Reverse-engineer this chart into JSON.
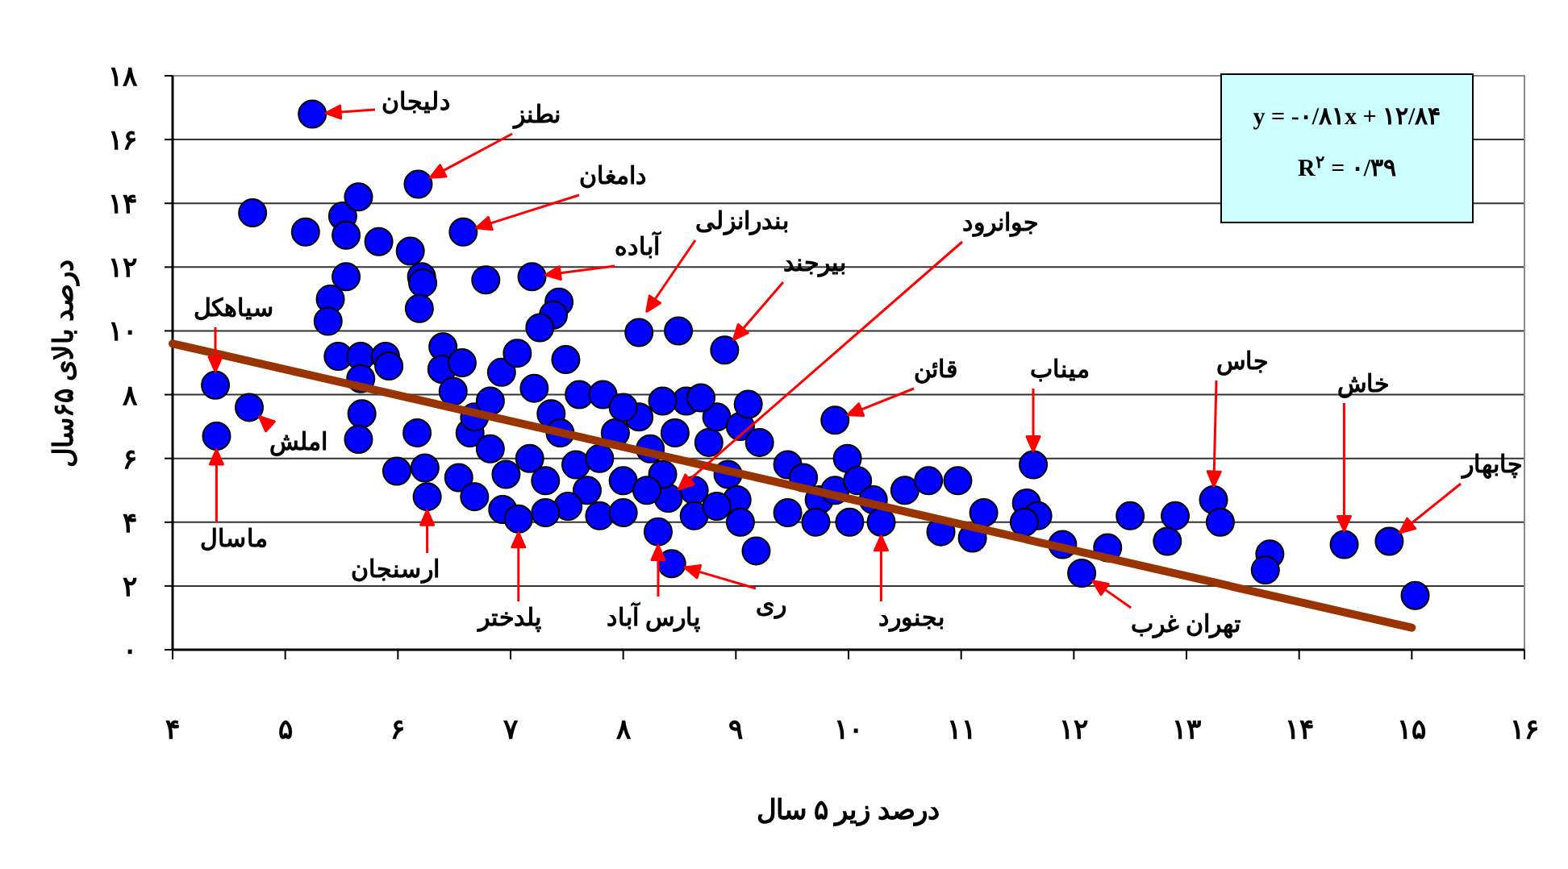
{
  "chart_data": {
    "type": "scatter",
    "xlabel": "درصد زیر ۵ سال",
    "ylabel": "درصد بالای ۶۵سال",
    "xlim": [
      4,
      16
    ],
    "xticks": [
      {
        "value": 4,
        "label": "۴"
      },
      {
        "value": 5,
        "label": "۵"
      },
      {
        "value": 6,
        "label": "۶"
      },
      {
        "value": 7,
        "label": "۷"
      },
      {
        "value": 8,
        "label": "۸"
      },
      {
        "value": 9,
        "label": "۹"
      },
      {
        "value": 10,
        "label": "۱۰"
      },
      {
        "value": 11,
        "label": "۱۱"
      },
      {
        "value": 12,
        "label": "۱۲"
      },
      {
        "value": 13,
        "label": "۱۳"
      },
      {
        "value": 14,
        "label": "۱۴"
      },
      {
        "value": 15,
        "label": "۱۵"
      },
      {
        "value": 16,
        "label": "۱۶"
      }
    ],
    "ylim": [
      0,
      18
    ],
    "yticks": [
      {
        "value": 0,
        "label": "۰"
      },
      {
        "value": 2,
        "label": "۲"
      },
      {
        "value": 4,
        "label": "۴"
      },
      {
        "value": 6,
        "label": "۶"
      },
      {
        "value": 8,
        "label": "۸"
      },
      {
        "value": 10,
        "label": "۱۰"
      },
      {
        "value": 12,
        "label": "۱۲"
      },
      {
        "value": 14,
        "label": "۱۴"
      },
      {
        "value": 16,
        "label": "۱۶"
      },
      {
        "value": 18,
        "label": "۱۸"
      }
    ],
    "grid": "y",
    "series": [
      {
        "type": "scatter",
        "marker": "circle",
        "color": "#0000ff",
        "x": [
          8.4,
          5.24,
          6.18,
          6.58,
          7.19,
          8.49,
          8.14,
          8.9,
          9.88,
          11.64,
          13.24,
          13.3,
          12.9,
          12.5,
          14.4,
          14.8,
          15.03,
          13.74,
          13.7,
          12.83,
          12.07,
          11.9,
          12.3,
          11.2,
          11.58,
          11.68,
          11.56,
          11.1,
          10.97,
          10.82,
          4.38,
          4.68,
          4.39,
          4.71,
          5.18,
          5.51,
          5.65,
          5.54,
          5.83,
          5.54,
          6.11,
          6.21,
          6.22,
          6.19,
          5.4,
          5.38,
          6.78,
          5.47,
          5.67,
          5.89,
          5.67,
          5.92,
          5.68,
          5.65,
          5.99,
          6.4,
          6.39,
          6.57,
          6.49,
          6.92,
          7.06,
          7.21,
          7.36,
          7.43,
          7.38,
          7.26,
          7.49,
          7.61,
          7.82,
          6.17,
          6.24,
          6.26,
          6.54,
          6.64,
          6.68,
          6.93,
          7.07,
          8.31,
          8.43,
          9.18,
          6.82,
          6.96,
          7.17,
          7.31,
          7.44,
          7.58,
          7.68,
          7.79,
          7.93,
          8.0,
          8.14,
          8.24,
          8.35,
          8.46,
          8.56,
          8.63,
          8.76,
          8.83,
          8.93,
          9.01,
          9.04,
          9.11,
          9.21,
          9.04,
          9.46,
          9.6,
          9.74,
          9.88,
          9.99,
          10.08,
          10.22,
          10.29,
          10.5,
          10.71,
          9.71,
          10.01,
          9.46,
          7.79,
          8.0,
          7.51,
          7.31,
          8.63,
          8.83,
          8.21,
          6.68,
          6.82,
          8.35,
          8.69,
          8.0
        ],
        "values": [
          4.75,
          16.8,
          14.6,
          13.1,
          11.7,
          10.0,
          9.95,
          9.4,
          7.2,
          5.8,
          4.7,
          4.0,
          4.2,
          4.2,
          3.3,
          3.4,
          1.7,
          3.0,
          2.5,
          3.4,
          2.4,
          3.3,
          3.2,
          4.3,
          4.6,
          4.2,
          4.0,
          3.5,
          5.3,
          3.7,
          8.3,
          7.6,
          6.7,
          13.7,
          13.1,
          13.6,
          14.2,
          13.0,
          12.8,
          11.7,
          12.5,
          11.7,
          11.5,
          10.7,
          11.0,
          10.3,
          11.6,
          9.2,
          9.2,
          9.2,
          8.5,
          8.9,
          7.4,
          6.6,
          5.6,
          9.5,
          8.8,
          9.0,
          8.1,
          8.7,
          9.3,
          8.2,
          7.4,
          10.9,
          10.5,
          10.1,
          9.1,
          8.0,
          8.0,
          6.8,
          5.7,
          4.8,
          5.4,
          6.8,
          4.8,
          4.4,
          4.1,
          3.7,
          2.7,
          3.1,
          6.3,
          5.5,
          6.0,
          5.3,
          6.8,
          5.8,
          5.0,
          6.0,
          6.8,
          5.3,
          7.3,
          6.3,
          5.5,
          6.8,
          7.8,
          5.0,
          6.5,
          7.3,
          5.5,
          4.7,
          7.0,
          7.7,
          6.5,
          4.0,
          5.8,
          5.4,
          4.7,
          5.0,
          6.0,
          5.3,
          4.7,
          4.0,
          5.0,
          5.3,
          4.0,
          4.0,
          4.3,
          4.2,
          4.3,
          4.5,
          4.3,
          4.2,
          4.5,
          5.0,
          7.3,
          7.8,
          7.8,
          7.9,
          7.6
        ]
      },
      {
        "type": "line",
        "color": "#993300",
        "x": [
          4,
          15
        ],
        "values": [
          9.6,
          0.69
        ]
      }
    ],
    "annotations": [
      "y = -۰/۸۱x + ۱۲/۸۴",
      "R$^{۲}$ = ۰/۳۹",
      "دلیجان",
      "نطنز",
      "دامغان",
      "آباده",
      "بندرانزلی",
      "بیرجند",
      "جوانرود",
      "قائن",
      "میناب",
      "جاس",
      "خاش",
      "چابهار",
      "سیاهکل",
      "املش",
      "ماسال",
      "ارسنجان",
      "پلدختر",
      "پارس آباد",
      "ری",
      "بجنورد",
      "تهران غرب"
    ]
  }
}
